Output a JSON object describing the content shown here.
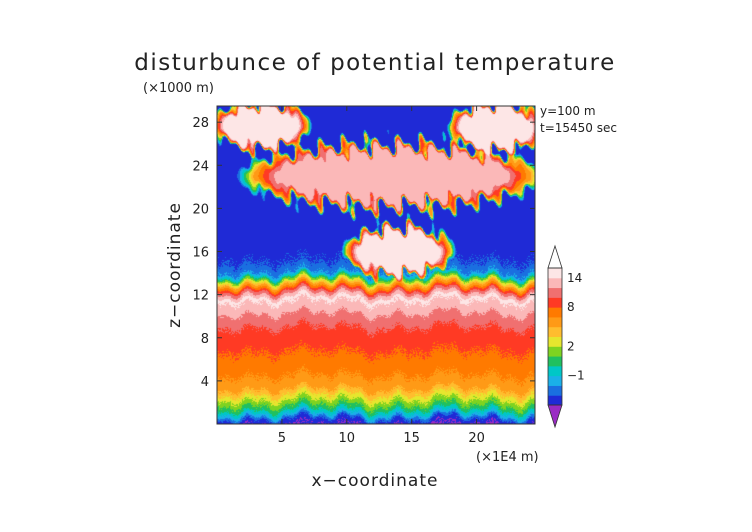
{
  "chart_data": {
    "type": "heatmap",
    "title": "disturbunce of potential temperature",
    "xlabel": "x−coordinate",
    "ylabel": "z−coordinate",
    "x_unit": "(×1E4 m)",
    "y_unit": "(×1000 m)",
    "annotation_lines": [
      "y=100 m",
      "t=15450 sec"
    ],
    "xlim": [
      0,
      24.5
    ],
    "ylim": [
      0,
      29.5
    ],
    "x_ticks": [
      5,
      10,
      15,
      20
    ],
    "y_ticks": [
      4,
      8,
      12,
      16,
      20,
      24,
      28
    ],
    "grid": false,
    "colorbar": {
      "tick_labels": [
        "−1",
        "2",
        "8",
        "14"
      ],
      "tick_values": [
        -1,
        2,
        8,
        14
      ],
      "levels": [
        -4,
        -3,
        -2,
        -1,
        0,
        1,
        2,
        3,
        4,
        6,
        8,
        10,
        12,
        14,
        16
      ],
      "colors": [
        "#9a2bc4",
        "#1f2ad6",
        "#1a6fe0",
        "#1ab0e8",
        "#00c7c7",
        "#20c060",
        "#7ed321",
        "#e6e62e",
        "#ffbd2e",
        "#ff9a16",
        "#ff7a00",
        "#ff3a24",
        "#f07070",
        "#fbb8b8",
        "#fde6e6",
        "#ffffff"
      ],
      "extend": "both"
    },
    "profile_z_km": [
      0,
      0.5,
      1,
      1.5,
      2,
      2.5,
      3,
      3.5,
      4,
      5,
      6,
      7,
      8,
      9,
      10,
      11,
      11.7,
      12.3,
      13,
      13.5,
      14,
      15,
      16,
      17,
      18,
      19,
      20,
      21,
      22,
      23,
      24,
      25,
      26,
      27,
      28,
      29.5
    ],
    "profile_value": [
      -4,
      -3,
      -1,
      0.5,
      1.5,
      2.5,
      3.5,
      4.5,
      5.5,
      6.5,
      7.5,
      8.2,
      9,
      10,
      11.5,
      13.5,
      14.5,
      11,
      4,
      1,
      -2,
      -3,
      -3.5,
      -3.5,
      -3.5,
      -3.5,
      -3.5,
      -3.5,
      -3.5,
      -3.5,
      -3.5,
      -3.5,
      -3.5,
      -3.5,
      -3.5,
      -3.5
    ],
    "warm_anomalies": [
      {
        "region": "upper-left cap",
        "x_range": [
          0.3,
          6.5
        ],
        "z_range": [
          25.8,
          29.5
        ],
        "value": 15
      },
      {
        "region": "upper-right cap",
        "x_range": [
          18.5,
          24.5
        ],
        "z_range": [
          25.5,
          29.5
        ],
        "value": 15
      },
      {
        "region": "upper band",
        "x_range": [
          4,
          23
        ],
        "z_range": [
          20.5,
          25.5
        ],
        "value": 13
      },
      {
        "region": "dome",
        "x_range": [
          10.5,
          17.5
        ],
        "z_range": [
          14,
          18
        ],
        "value": 14
      }
    ]
  }
}
